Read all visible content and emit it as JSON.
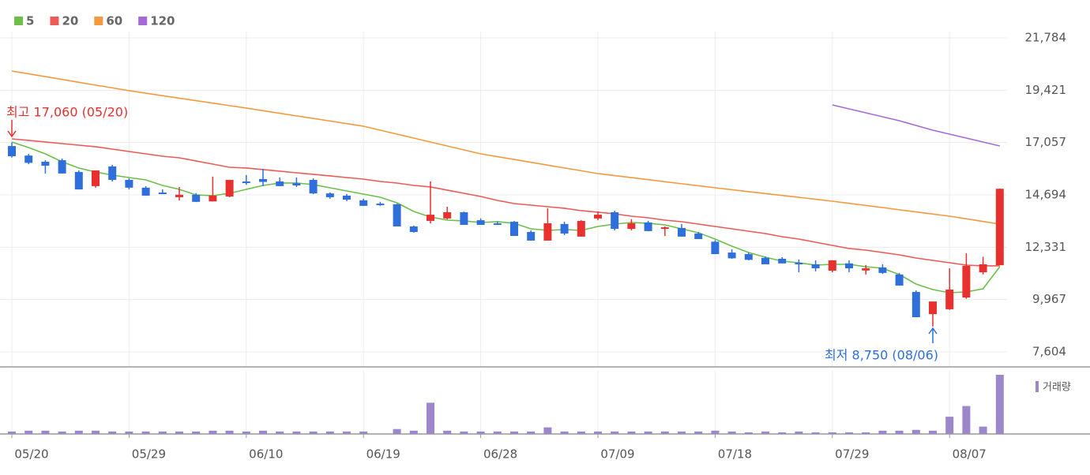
{
  "chart_data": {
    "type": "candlestick",
    "categories": [
      "05/20",
      null,
      null,
      null,
      null,
      null,
      null,
      "05/29",
      null,
      null,
      null,
      null,
      null,
      null,
      "06/10",
      null,
      null,
      null,
      null,
      null,
      null,
      "06/19",
      null,
      null,
      null,
      null,
      null,
      null,
      "06/28",
      null,
      null,
      null,
      null,
      null,
      null,
      "07/09",
      null,
      null,
      null,
      null,
      null,
      null,
      "07/18",
      null,
      null,
      null,
      null,
      null,
      null,
      "07/29",
      null,
      null,
      null,
      null,
      null,
      null,
      "08/07",
      null,
      null,
      null
    ],
    "open": [
      16900,
      16470,
      16190,
      16260,
      15730,
      15090,
      15980,
      15370,
      15020,
      14800,
      14590,
      14700,
      14400,
      14620,
      15300,
      15410,
      15300,
      15220,
      15370,
      14760,
      14660,
      14450,
      14300,
      14270,
      13270,
      13520,
      13630,
      13910,
      13550,
      13410,
      13480,
      13020,
      12630,
      13380,
      12810,
      13630,
      13910,
      13160,
      13450,
      13160,
      13200,
      12950,
      12580,
      12090,
      12020,
      11850,
      11810,
      11630,
      11560,
      11270,
      11600,
      11280,
      11420,
      11100,
      10310,
      9310,
      9530,
      10060,
      11200,
      11520
    ],
    "high": [
      17060,
      16540,
      16260,
      16330,
      15800,
      15800,
      16050,
      15440,
      15090,
      14940,
      15050,
      14770,
      15520,
      15380,
      15590,
      15870,
      15480,
      15480,
      15440,
      14800,
      14730,
      14520,
      14380,
      14300,
      13310,
      15300,
      14160,
      13940,
      13630,
      13480,
      13520,
      13090,
      14090,
      13480,
      13550,
      13950,
      13980,
      13600,
      13520,
      13270,
      13380,
      13020,
      12650,
      12240,
      12090,
      11920,
      11880,
      11780,
      11740,
      11740,
      11740,
      11530,
      11560,
      11170,
      10380,
      9880,
      11380,
      12060,
      11900,
      14980
    ],
    "low": [
      16380,
      16080,
      15660,
      15660,
      14940,
      15020,
      15300,
      14940,
      14660,
      14730,
      14440,
      14370,
      14400,
      14590,
      15150,
      15090,
      15090,
      15050,
      14730,
      14520,
      14410,
      14200,
      14200,
      13270,
      12990,
      13410,
      13590,
      13340,
      13340,
      13340,
      12840,
      12630,
      12630,
      12880,
      12810,
      13550,
      13090,
      13090,
      13050,
      12840,
      12810,
      12700,
      12020,
      11810,
      11740,
      11560,
      11600,
      11200,
      11240,
      11200,
      11200,
      11100,
      11130,
      10600,
      9170,
      8750,
      9500,
      10000,
      11100,
      11520
    ],
    "close": [
      16440,
      16140,
      16010,
      15660,
      14940,
      15800,
      15370,
      15020,
      14660,
      14730,
      14700,
      14380,
      14660,
      15370,
      15270,
      15280,
      15090,
      15120,
      14760,
      14590,
      14480,
      14200,
      14230,
      13270,
      13020,
      13800,
      13910,
      13340,
      13340,
      13340,
      12840,
      12630,
      13410,
      12950,
      13520,
      13800,
      13160,
      13410,
      13060,
      13230,
      12810,
      12700,
      12020,
      11830,
      11760,
      11560,
      11600,
      11560,
      11380,
      11740,
      11380,
      11380,
      11170,
      10600,
      9170,
      9880,
      10420,
      11490,
      11560,
      14970
    ],
    "up_color": "#e8312f",
    "down_color": "#2e6fdc",
    "series": [
      {
        "name": "5",
        "color": "#6cc04a",
        "values": [
          17082,
          16832,
          16547,
          16191,
          15906,
          15728,
          15585,
          15478,
          15371,
          15122,
          14944,
          14694,
          14659,
          14766,
          14944,
          15122,
          15229,
          15229,
          15158,
          15015,
          14873,
          14730,
          14587,
          14338,
          13946,
          13697,
          13554,
          13519,
          13447,
          13483,
          13412,
          13162,
          13091,
          13127,
          13091,
          13269,
          13376,
          13447,
          13412,
          13340,
          13162,
          12984,
          12699,
          12378,
          12093,
          11879,
          11701,
          11630,
          11523,
          11559,
          11559,
          11452,
          11381,
          11096,
          10668,
          10419,
          10276,
          10312,
          10454,
          11452
        ]
      },
      {
        "name": "20",
        "color": "#ee5a55",
        "values": [
          17224,
          17153,
          17082,
          17010,
          16939,
          16868,
          16761,
          16654,
          16547,
          16440,
          16369,
          16227,
          16084,
          15941,
          15906,
          15835,
          15764,
          15692,
          15621,
          15550,
          15478,
          15407,
          15300,
          15229,
          15122,
          15051,
          14909,
          14766,
          14623,
          14445,
          14302,
          14231,
          14160,
          14089,
          13982,
          13911,
          13839,
          13732,
          13661,
          13554,
          13483,
          13376,
          13269,
          13162,
          13055,
          12948,
          12806,
          12699,
          12556,
          12414,
          12272,
          12200,
          12093,
          11986,
          11844,
          11737,
          11630,
          11523,
          11488,
          11488
        ]
      },
      {
        "name": "60",
        "color": "#f39a3e",
        "values": [
          20287,
          20160,
          20035,
          19907,
          19779,
          19651,
          19526,
          19398,
          19287,
          19173,
          19062,
          18948,
          18838,
          18724,
          18614,
          18496,
          18378,
          18261,
          18147,
          18029,
          17912,
          17794,
          17616,
          17438,
          17260,
          17082,
          16903,
          16725,
          16547,
          16419,
          16294,
          16166,
          16038,
          15909,
          15785,
          15656,
          15564,
          15475,
          15382,
          15289,
          15197,
          15107,
          15015,
          14929,
          14840,
          14755,
          14669,
          14584,
          14495,
          14409,
          14313,
          14217,
          14121,
          14021,
          13925,
          13829,
          13732,
          13615,
          13494,
          13376
        ]
      },
      {
        "name": "120",
        "color": "#a56ad8",
        "values": [
          null,
          null,
          null,
          null,
          null,
          null,
          null,
          null,
          null,
          null,
          null,
          null,
          null,
          null,
          null,
          null,
          null,
          null,
          null,
          null,
          null,
          null,
          null,
          null,
          null,
          null,
          null,
          null,
          null,
          null,
          null,
          null,
          null,
          null,
          null,
          null,
          null,
          null,
          null,
          null,
          null,
          null,
          null,
          null,
          null,
          null,
          null,
          null,
          null,
          18756,
          18578,
          18400,
          18222,
          18043,
          17830,
          17616,
          17438,
          17260,
          17082,
          16903
        ]
      }
    ],
    "volume": {
      "name": "거래량",
      "color": "#9b87c9",
      "values": [
        3,
        4,
        4,
        3,
        4,
        4,
        3,
        3,
        3,
        3,
        3,
        3,
        4,
        4,
        3,
        4,
        3,
        3,
        3,
        3,
        3,
        3,
        0,
        6,
        4,
        38,
        4,
        3,
        3,
        3,
        3,
        3,
        8,
        3,
        3,
        3,
        3,
        3,
        3,
        3,
        3,
        3,
        4,
        3,
        2,
        3,
        2,
        3,
        2,
        2,
        2,
        2,
        4,
        4,
        5,
        4,
        21,
        34,
        9,
        72
      ]
    },
    "annotations": [
      "최고 17,060 (05/20)",
      "최저 8,750 (08/06)"
    ],
    "ylim": [
      6927,
      22069
    ],
    "yticks": [
      {
        "value": 7604,
        "label": "7,604"
      },
      {
        "value": 9967,
        "label": "9,967"
      },
      {
        "value": 12331,
        "label": "12,331"
      },
      {
        "value": 14694,
        "label": "14,694"
      },
      {
        "value": 17057,
        "label": "17,057"
      },
      {
        "value": 19421,
        "label": "19,421"
      },
      {
        "value": 21784,
        "label": "21,784"
      }
    ],
    "grid": true
  }
}
